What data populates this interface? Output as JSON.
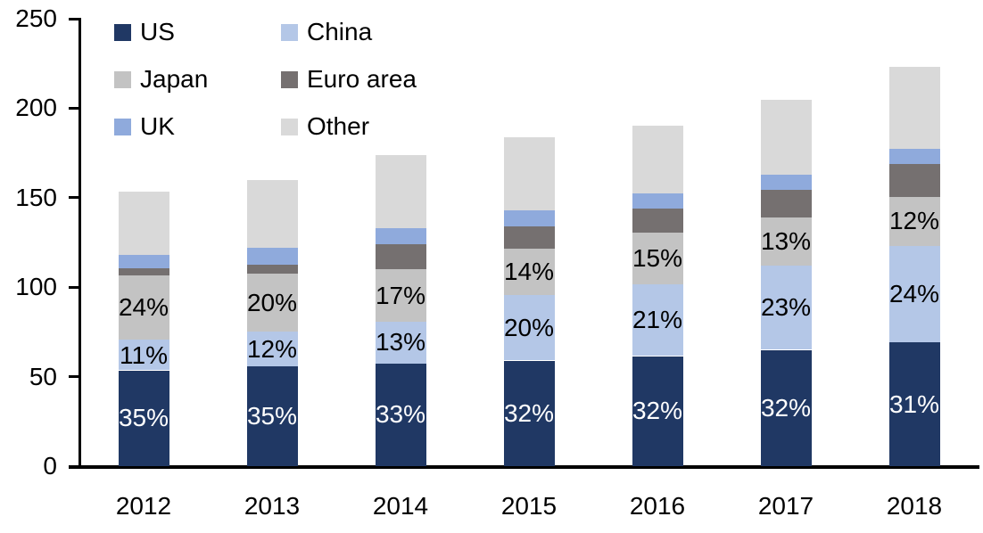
{
  "chart_data": {
    "type": "stacked-bar",
    "title": "",
    "xlabel": "",
    "ylabel": "",
    "categories": [
      "2012",
      "2013",
      "2014",
      "2015",
      "2016",
      "2017",
      "2018"
    ],
    "series": [
      {
        "name": "US",
        "color": "#203864",
        "values": [
          53.5,
          56,
          57.5,
          59,
          61.5,
          65,
          69
        ],
        "labels": [
          "35%",
          "35%",
          "33%",
          "32%",
          "32%",
          "32%",
          "31%"
        ],
        "label_color": "#ffffff"
      },
      {
        "name": "China",
        "color": "#B4C7E7",
        "values": [
          17,
          19,
          23,
          36.5,
          40,
          47,
          54
        ],
        "labels": [
          "11%",
          "12%",
          "13%",
          "20%",
          "21%",
          "23%",
          "24%"
        ],
        "label_color": "#000000"
      },
      {
        "name": "Japan",
        "color": "#C3C3C3",
        "values": [
          36,
          32.5,
          29.5,
          26,
          29,
          27,
          27.5
        ],
        "labels": [
          "24%",
          "20%",
          "17%",
          "14%",
          "15%",
          "13%",
          "12%"
        ],
        "label_color": "#000000"
      },
      {
        "name": "Euro area",
        "color": "#757070",
        "values": [
          4,
          5,
          14,
          12.5,
          13.5,
          15.5,
          18.5
        ],
        "labels": null
      },
      {
        "name": "UK",
        "color": "#8FAADC",
        "values": [
          7.5,
          9.5,
          9,
          9,
          8.5,
          8.5,
          8.5
        ],
        "labels": null
      },
      {
        "name": "Other",
        "color": "#D9D9D9",
        "values": [
          35.5,
          38,
          41,
          41,
          38,
          41.5,
          45.5
        ],
        "labels": null
      }
    ],
    "totals": [
      153.5,
      160,
      174,
      184,
      190.5,
      204.5,
      223
    ],
    "ylim": [
      0,
      250
    ],
    "yticks": [
      0,
      50,
      100,
      150,
      200,
      250
    ],
    "grid": false,
    "legend_position": "top-left",
    "legend_columns": 2,
    "axis_color": "#000000"
  }
}
